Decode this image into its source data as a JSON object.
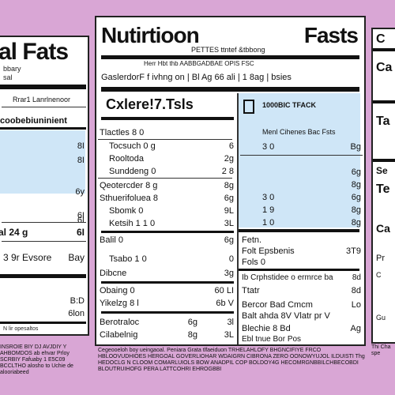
{
  "left": {
    "title": "al Fats",
    "sub1": "bbary",
    "sub2": "sal",
    "bar_label": "Rrar1 Lanrlnenoor",
    "highlight": "coobebiuninient",
    "rows": [
      {
        "l": "",
        "r": "8I"
      },
      {
        "l": "",
        "r": "8I"
      },
      {
        "l": "",
        "r": "6y"
      },
      {
        "l": "",
        "r": "6I"
      },
      {
        "l": "",
        "r": "6I"
      },
      {
        "l": "al 24 g",
        "r": "6I"
      },
      {
        "l": "3 9r Evsore",
        "r": "Bay"
      },
      {
        "l": "",
        "r": "B:D"
      },
      {
        "l": "",
        "r": "6lon"
      }
    ],
    "footer": "N lir opesaltos",
    "bottom": "INSROIE BIY DJ AVJDIY Y AHBOMDOS ab ehvar Prloy SCRBIY Fafuaby 1 E5C09 BCCLTHO alosho to Uchie de alooriabeed"
  },
  "center": {
    "title_left": "Nutirtioon",
    "title_right": "Fasts",
    "subtitle": "PETTES ttntef &tbbong",
    "serving_hint": "Herr Hbt thb AABBGADBAE OPIS FSC",
    "serving": "GaslerdorF f ivhng on | Bl Ag 66 ali | 1 8ag | bsies",
    "calories_label": "Cxlere!7.Tsls",
    "box_header": "1000BIC TFACK",
    "box_sub": "Menl Cihenes Bac Fsts",
    "rows_left": [
      {
        "l": "Tlactles 8 0",
        "r": ""
      },
      {
        "l": "Tocsuch 0 g",
        "r": "6"
      },
      {
        "l": "Rooltoda",
        "r": "2g"
      },
      {
        "l": "Sunddeng 0",
        "r": "2 8"
      },
      {
        "l": "Qeotercder 8 g",
        "r": "8g"
      },
      {
        "l": "Sthuerifoluea 8",
        "r": "6g"
      },
      {
        "l": "Sbomk 0",
        "r": "9L"
      },
      {
        "l": "Ketsih 1 1 0",
        "r": "3L"
      },
      {
        "l": "Balil 0",
        "r": "6g"
      },
      {
        "l": "Tsabo 1 0",
        "r": "0"
      },
      {
        "l": "Dibcne",
        "r": "3g"
      },
      {
        "l": "Obaing 0",
        "r": "60 LI"
      },
      {
        "l": "Yikelzg 8 l",
        "r": "6b V"
      },
      {
        "l": "Berotraloc",
        "r": "3l"
      },
      {
        "l": "Cilabelnig",
        "r": "3L"
      }
    ],
    "rows_mid": [
      "",
      "",
      "",
      "",
      "",
      "",
      "",
      "",
      "",
      "",
      "",
      "",
      "0L",
      "6g",
      "8g"
    ],
    "rows_right": [
      {
        "l": "3 0",
        "r": "Bg"
      },
      {
        "l": "",
        "r": "6g"
      },
      {
        "l": "",
        "r": "8g"
      },
      {
        "l": "3 0",
        "r": "6g"
      },
      {
        "l": "1 9",
        "r": "8g"
      },
      {
        "l": "1 0",
        "r": "8g"
      },
      {
        "l": "Fetn.",
        "r": ""
      },
      {
        "l": "Folt Epsbenis",
        "r": "3T9"
      },
      {
        "l": "Fols 0",
        "r": ""
      },
      {
        "l": "Ib Crphstidee o ermrce ba",
        "r": "8d"
      },
      {
        "l": "Ttatr",
        "r": "8d"
      },
      {
        "l": "Bercor Bad Cmcm",
        "r": "Lo"
      },
      {
        "l": "Balt ahda 8V Vlatr pr V",
        "r": ""
      },
      {
        "l": "Blechie 8 Bd",
        "r": "Ag"
      },
      {
        "l": "Ebl tnue Bor Pos",
        "r": ""
      }
    ],
    "bottom": "Cegeooeloh boy ueingaoal. Peniara Grata tlfaeiduon TRHELAHLOFY BHGNCIFIYE FRCO HBLOOVUDHIOES HERGOAL GOVERLIOHAR WDAIGRN CIBRONA ZERO OONOWYUJOL ILDUISTI Thg HEDOCLG N CLOOM COMARLUIOLS BOW ANADPIL COP BOLDOY4G HECOMRGNBBILCHBECOBDI BLOUTRUIHOFG PERA LATTCOHRI EHROGBBI"
  },
  "right": {
    "labels": [
      "C",
      "Ca",
      "Ta",
      "Se",
      "Te",
      "Ca",
      "Pr",
      "C",
      "Gu"
    ],
    "bottom": "Thi Cha spe"
  }
}
